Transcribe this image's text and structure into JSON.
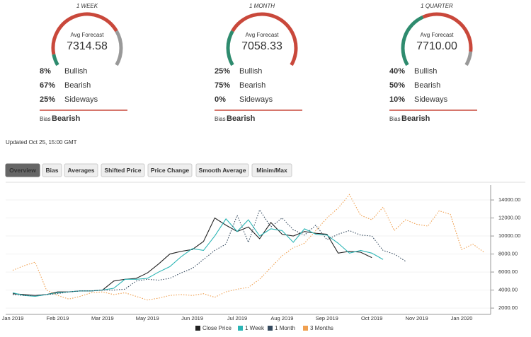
{
  "gauges": [
    {
      "period": "1 WEEK",
      "avg_label": "Avg Forecast",
      "avg": "7314.58",
      "rows": [
        {
          "name": "Bullish",
          "value": 8,
          "value_label": "8%"
        },
        {
          "name": "Bearish",
          "value": 67,
          "value_label": "67%"
        },
        {
          "name": "Sideways",
          "value": 25,
          "value_label": "25%"
        }
      ],
      "bias_label": "Bias",
      "bias": "Bearish"
    },
    {
      "period": "1 MONTH",
      "avg_label": "Avg Forecast",
      "avg": "7058.33",
      "rows": [
        {
          "name": "Bullish",
          "value": 25,
          "value_label": "25%"
        },
        {
          "name": "Bearish",
          "value": 75,
          "value_label": "75%"
        },
        {
          "name": "Sideways",
          "value": 0,
          "value_label": "0%"
        }
      ],
      "bias_label": "Bias",
      "bias": "Bearish"
    },
    {
      "period": "1 QUARTER",
      "avg_label": "Avg Forecast",
      "avg": "7710.00",
      "rows": [
        {
          "name": "Bullish",
          "value": 40,
          "value_label": "40%"
        },
        {
          "name": "Bearish",
          "value": 50,
          "value_label": "50%"
        },
        {
          "name": "Sideways",
          "value": 10,
          "value_label": "10%"
        }
      ],
      "bias_label": "Bias",
      "bias": "Bearish"
    }
  ],
  "row_colors": [
    "#2e8b6e",
    "#c9483b",
    "#777777"
  ],
  "updated": "Updated Oct 25, 15:00 GMT",
  "tabs": [
    "Overview",
    "Bias",
    "Averages",
    "Shifted Price",
    "Price Change",
    "Smooth Average",
    "Minim/Max"
  ],
  "chart_data": {
    "type": "line",
    "categories": [
      "Jan 2019",
      null,
      null,
      null,
      "Feb 2019",
      null,
      null,
      null,
      "Mar 2019",
      null,
      null,
      null,
      "May 2019",
      null,
      null,
      null,
      "Jun 2019",
      null,
      null,
      null,
      "Jul 2019",
      null,
      null,
      null,
      "Aug 2019",
      null,
      null,
      null,
      "Sep 2019",
      null,
      null,
      null,
      "Oct 2019",
      null,
      null,
      null,
      "Nov 2019",
      null,
      null,
      null,
      "Jan 2020",
      null,
      null
    ],
    "series": [
      {
        "name": "Close Price",
        "color": "#222222",
        "style": "solid",
        "values": [
          3600,
          3500,
          3400,
          3500,
          3800,
          3800,
          3900,
          3900,
          4000,
          5000,
          5200,
          5300,
          5900,
          6900,
          8000,
          8300,
          8500,
          9400,
          12000,
          11200,
          10500,
          11000,
          9700,
          11500,
          10200,
          10000,
          10500,
          10300,
          10200,
          8100,
          8300,
          8200,
          7600,
          null,
          null,
          null,
          null,
          null,
          null,
          null,
          null,
          null,
          null
        ]
      },
      {
        "name": "1 Week",
        "color": "#2bb5b5",
        "style": "solid",
        "values": [
          3700,
          3400,
          3300,
          3500,
          3700,
          3800,
          3900,
          3900,
          4000,
          4200,
          5200,
          5200,
          5300,
          6000,
          6600,
          7700,
          8600,
          8400,
          10000,
          11900,
          10500,
          11800,
          10000,
          10800,
          10600,
          9300,
          10800,
          10200,
          10100,
          9200,
          8100,
          8400,
          8100,
          7400,
          null,
          null,
          null,
          null,
          null,
          null,
          null,
          null,
          null
        ]
      },
      {
        "name": "1 Month",
        "color": "#34495e",
        "style": "dotted",
        "values": [
          3500,
          3400,
          3400,
          3500,
          3600,
          3800,
          3900,
          3900,
          4000,
          4000,
          4100,
          5000,
          5200,
          5100,
          5300,
          5900,
          6400,
          7400,
          8400,
          9100,
          12300,
          9300,
          12900,
          11000,
          12000,
          10700,
          10100,
          11200,
          9600,
          10200,
          10600,
          10100,
          10000,
          8400,
          8000,
          7200,
          null,
          null,
          null,
          null,
          null,
          null,
          null
        ]
      },
      {
        "name": "3 Months",
        "color": "#f0a050",
        "style": "dotted",
        "values": [
          6200,
          6700,
          7100,
          4000,
          3400,
          3000,
          3300,
          3700,
          3800,
          3500,
          3700,
          3300,
          2900,
          3100,
          3400,
          3500,
          3400,
          3600,
          3200,
          3800,
          4100,
          4300,
          5200,
          6500,
          7800,
          8700,
          9200,
          10600,
          12000,
          13100,
          14600,
          12300,
          11800,
          13200,
          10600,
          11800,
          11300,
          11100,
          12800,
          12400,
          8500,
          9100,
          8200
        ]
      }
    ],
    "ylim": [
      1300,
      15650
    ],
    "yticks": [
      {
        "value": 2000,
        "label": "2000.00"
      },
      {
        "value": 4000,
        "label": "4000.00"
      },
      {
        "value": 6000,
        "label": "6000.00"
      },
      {
        "value": 8000,
        "label": "8000.00"
      },
      {
        "value": 10000,
        "label": "10000.00"
      },
      {
        "value": 12000,
        "label": "12000.00"
      },
      {
        "value": 14000,
        "label": "14000.00"
      }
    ],
    "grid": true
  }
}
